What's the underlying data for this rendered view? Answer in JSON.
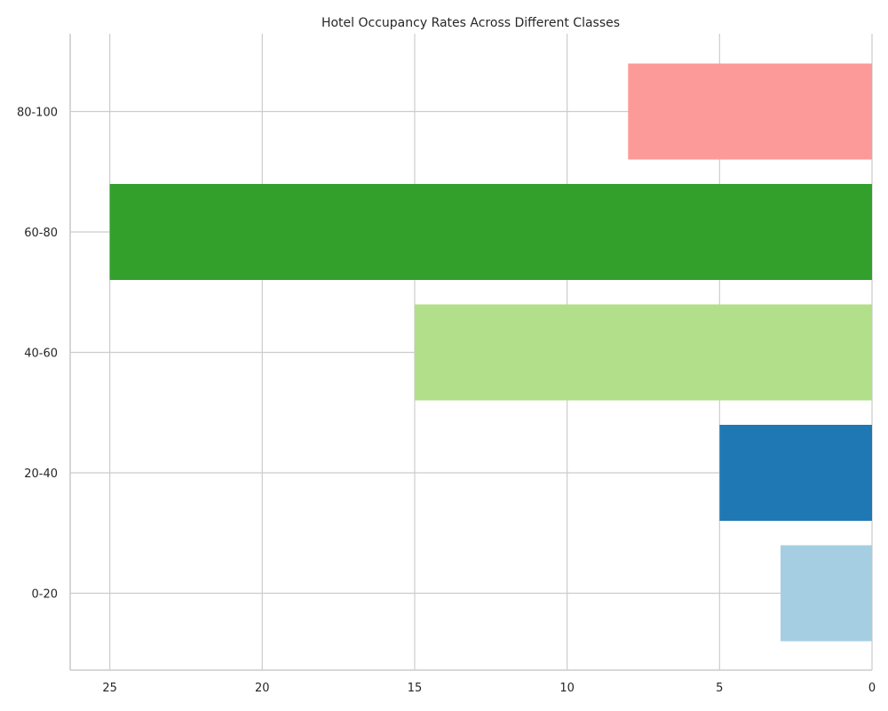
{
  "chart_data": {
    "type": "bar",
    "orientation": "horizontal",
    "title": "Hotel Occupancy Rates Across Different Classes",
    "xlabel": "",
    "ylabel": "",
    "x_axis_inverted": true,
    "xlim": [
      26.3,
      0
    ],
    "x_ticks": [
      25,
      20,
      15,
      10,
      5,
      0
    ],
    "categories": [
      "0-20",
      "20-40",
      "40-60",
      "60-80",
      "80-100"
    ],
    "values": [
      3,
      5,
      15,
      25,
      8
    ],
    "colors": [
      "#a6cee3",
      "#1f78b4",
      "#b2df8a",
      "#33a02c",
      "#fb9a99"
    ],
    "grid": true
  }
}
